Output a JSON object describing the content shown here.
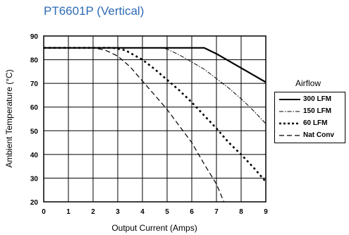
{
  "chart_data": {
    "type": "line",
    "title": "PT6601P (Vertical)",
    "xlabel": "Output Current (Amps)",
    "ylabel": "Ambient Temperature (°C)",
    "xlim": [
      0,
      9
    ],
    "ylim": [
      20,
      90
    ],
    "xticks": [
      0,
      1,
      2,
      3,
      4,
      5,
      6,
      7,
      8,
      9
    ],
    "yticks": [
      20,
      30,
      40,
      50,
      60,
      70,
      80,
      90
    ],
    "grid": true,
    "legend": {
      "title": "Airflow",
      "position": "right"
    },
    "series": [
      {
        "name": "300 LFM",
        "style": "solid",
        "points": [
          [
            0,
            85
          ],
          [
            6.5,
            85
          ],
          [
            7.0,
            82.5
          ],
          [
            7.5,
            79.5
          ],
          [
            8.0,
            76.5
          ],
          [
            8.5,
            73.5
          ],
          [
            9.0,
            70.5
          ]
        ]
      },
      {
        "name": "150 LFM",
        "style": "dash-dot",
        "points": [
          [
            0,
            85
          ],
          [
            4.7,
            85
          ],
          [
            5.0,
            84.5
          ],
          [
            5.5,
            82
          ],
          [
            6.0,
            79
          ],
          [
            6.5,
            76
          ],
          [
            7.0,
            72
          ],
          [
            7.5,
            68
          ],
          [
            8.0,
            63.5
          ],
          [
            8.5,
            58.5
          ],
          [
            9.0,
            53
          ]
        ]
      },
      {
        "name": "60 LFM",
        "style": "dotted",
        "points": [
          [
            0,
            85
          ],
          [
            2.8,
            85
          ],
          [
            3.3,
            84
          ],
          [
            4.0,
            80
          ],
          [
            4.5,
            76
          ],
          [
            5.0,
            71.5
          ],
          [
            5.5,
            67
          ],
          [
            6.0,
            62
          ],
          [
            6.5,
            56.5
          ],
          [
            7.0,
            51
          ],
          [
            7.5,
            45
          ],
          [
            8.0,
            40
          ],
          [
            8.5,
            34.5
          ],
          [
            9.0,
            28.5
          ]
        ]
      },
      {
        "name": "Nat Conv",
        "style": "dashed",
        "points": [
          [
            0,
            85
          ],
          [
            2.0,
            85
          ],
          [
            2.5,
            84
          ],
          [
            3.0,
            81.5
          ],
          [
            3.5,
            77
          ],
          [
            4.0,
            71
          ],
          [
            4.5,
            65
          ],
          [
            5.0,
            59
          ],
          [
            5.5,
            52
          ],
          [
            6.0,
            45
          ],
          [
            6.5,
            36
          ],
          [
            7.0,
            27.5
          ],
          [
            7.3,
            20
          ]
        ]
      }
    ]
  }
}
